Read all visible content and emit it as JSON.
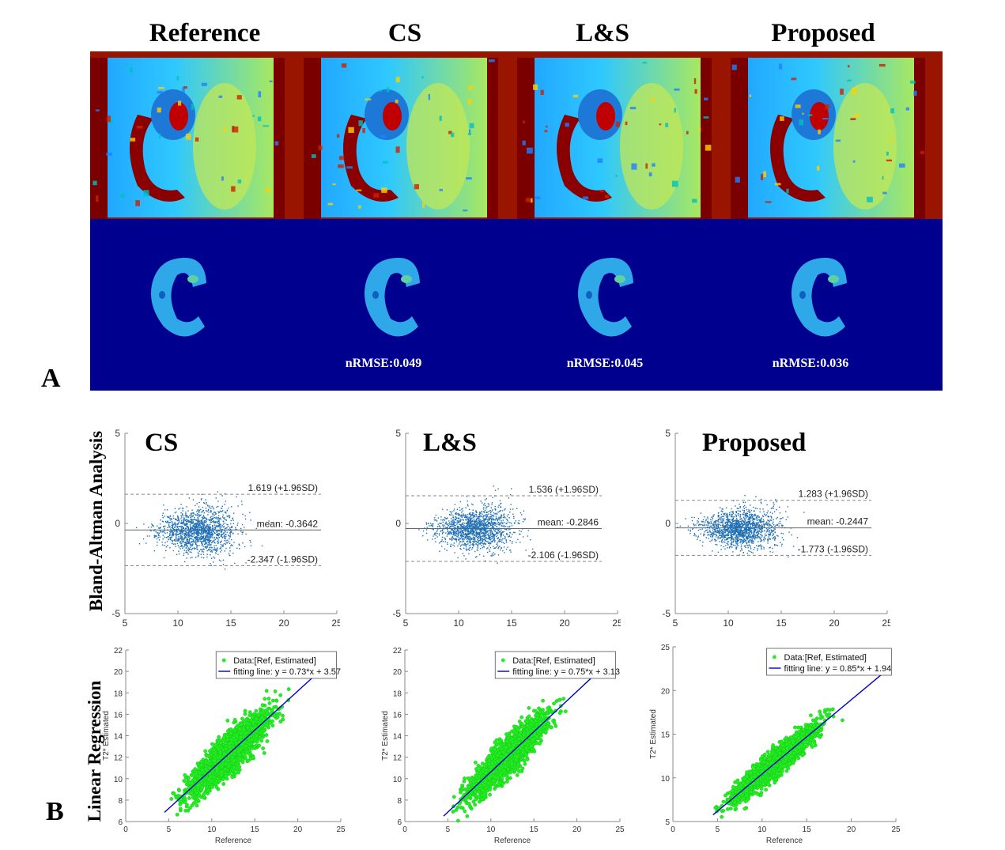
{
  "panel_a": {
    "label": "A",
    "columns": [
      "Reference",
      "CS",
      "L&S",
      "Proposed"
    ],
    "nrmse": [
      {
        "method": "CS",
        "text": "nRMSE:0.049"
      },
      {
        "method": "L&S",
        "text": "nRMSE:0.045"
      },
      {
        "method": "Proposed",
        "text": "nRMSE:0.036"
      }
    ]
  },
  "panel_b": {
    "label": "B",
    "row_labels": {
      "bland_altman": "Bland-Altman Analysis",
      "regression": "Linear Regression"
    }
  },
  "colors": {
    "scatter_ba": "#1f6fb4",
    "scatter_reg": "#22ee22",
    "fit_line": "#0000cc",
    "map_background": "#00008f"
  },
  "chart_data": [
    {
      "type": "scatter",
      "subtype": "bland-altman",
      "title": "CS",
      "xlim": [
        5,
        25
      ],
      "ylim": [
        -5,
        5
      ],
      "xticks": [
        5,
        10,
        15,
        20,
        25
      ],
      "yticks": [
        -5,
        0,
        5
      ],
      "mean": -0.3642,
      "upper": 1.619,
      "lower": -2.347,
      "mean_label": "mean: -0.3642",
      "upper_label": "1.619 (+1.96SD)",
      "lower_label": "-2.347 (-1.96SD)",
      "cluster": {
        "x_mean": 11.8,
        "x_sd": 1.8,
        "x_min": 6,
        "x_max": 19,
        "y_sd": 0.9
      }
    },
    {
      "type": "scatter",
      "subtype": "bland-altman",
      "title": "L&S",
      "xlim": [
        5,
        25
      ],
      "ylim": [
        -5,
        5
      ],
      "xticks": [
        5,
        10,
        15,
        20,
        25
      ],
      "yticks": [
        -5,
        0,
        5
      ],
      "mean": -0.2846,
      "upper": 1.536,
      "lower": -2.106,
      "mean_label": "mean: -0.2846",
      "upper_label": "1.536 (+1.96SD)",
      "lower_label": "-2.106 (-1.96SD)",
      "cluster": {
        "x_mean": 11.5,
        "x_sd": 1.8,
        "x_min": 6,
        "x_max": 18,
        "y_sd": 0.85
      }
    },
    {
      "type": "scatter",
      "subtype": "bland-altman",
      "title": "Proposed",
      "xlim": [
        5,
        25
      ],
      "ylim": [
        -5,
        5
      ],
      "xticks": [
        5,
        10,
        15,
        20,
        25
      ],
      "yticks": [
        -5,
        0,
        5
      ],
      "mean": -0.2447,
      "upper": 1.283,
      "lower": -1.773,
      "mean_label": "mean: -0.2447",
      "upper_label": "1.283 (+1.96SD)",
      "lower_label": "-1.773 (-1.96SD)",
      "cluster": {
        "x_mean": 11.0,
        "x_sd": 1.8,
        "x_min": 5,
        "x_max": 18,
        "y_sd": 0.75
      }
    },
    {
      "type": "scatter",
      "subtype": "linear-regression",
      "xlabel": "Reference",
      "ylabel": "T2* Estimated",
      "xlim": [
        0,
        25
      ],
      "ylim": [
        6,
        22
      ],
      "xticks": [
        0,
        5,
        10,
        15,
        20,
        25
      ],
      "yticks": [
        6,
        8,
        10,
        12,
        14,
        16,
        18,
        20,
        22
      ],
      "slope": 0.73,
      "intercept": 3.57,
      "legend": [
        "Data:[Ref, Estimated]",
        "fitting line: y = 0.73*x + 3.57"
      ],
      "cluster": {
        "x_mean": 12.0,
        "x_sd": 2.2,
        "x_min": 4.5,
        "x_max": 24,
        "noise_sd": 0.9
      }
    },
    {
      "type": "scatter",
      "subtype": "linear-regression",
      "xlabel": "Reference",
      "ylabel": "T2* Estimated",
      "xlim": [
        0,
        25
      ],
      "ylim": [
        6,
        22
      ],
      "xticks": [
        0,
        5,
        10,
        15,
        20,
        25
      ],
      "yticks": [
        6,
        8,
        10,
        12,
        14,
        16,
        18,
        20,
        22
      ],
      "slope": 0.75,
      "intercept": 3.13,
      "legend": [
        "Data:[Ref, Estimated]",
        "fitting line: y = 0.75*x + 3.13"
      ],
      "cluster": {
        "x_mean": 12.0,
        "x_sd": 2.2,
        "x_min": 4.5,
        "x_max": 24,
        "noise_sd": 0.8
      }
    },
    {
      "type": "scatter",
      "subtype": "linear-regression",
      "xlabel": "Reference",
      "ylabel": "T2* Estimated",
      "xlim": [
        0,
        25
      ],
      "ylim": [
        5,
        25
      ],
      "xticks": [
        0,
        5,
        10,
        15,
        20,
        25
      ],
      "yticks": [
        5,
        10,
        15,
        20,
        25
      ],
      "slope": 0.85,
      "intercept": 1.94,
      "legend": [
        "Data:[Ref, Estimated]",
        "fitting line: y = 0.85*x + 1.94"
      ],
      "cluster": {
        "x_mean": 11.5,
        "x_sd": 2.2,
        "x_min": 4.5,
        "x_max": 23,
        "noise_sd": 0.7
      }
    }
  ]
}
